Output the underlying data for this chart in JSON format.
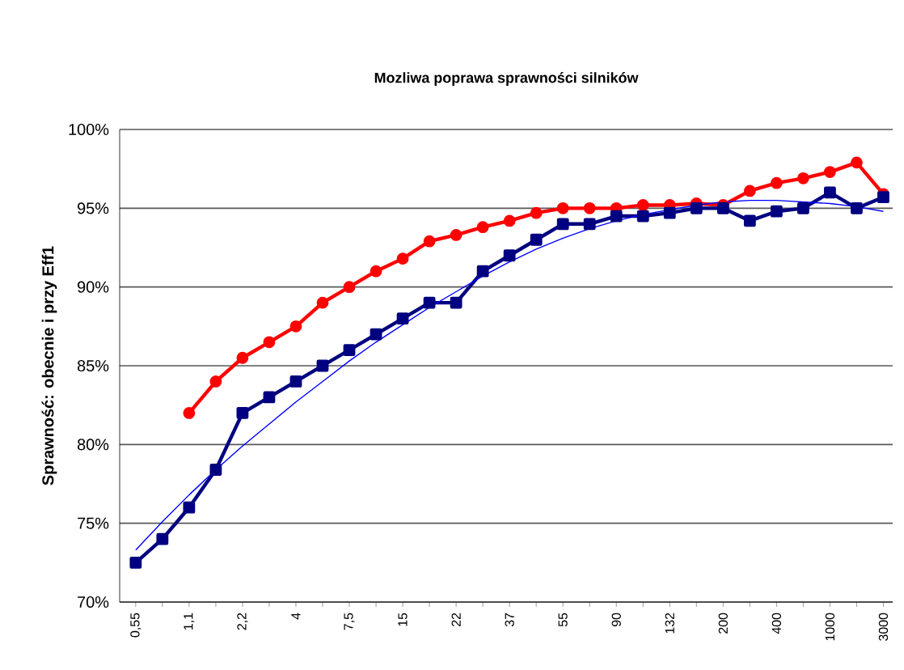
{
  "chart_data": {
    "type": "line",
    "title": "Mozliwa poprawa sprawności silników",
    "ylabel": "Sprawność: obecnie i przy Eff1",
    "categories": [
      "0,55",
      null,
      "1,1",
      null,
      "2,2",
      null,
      "4",
      null,
      "7,5",
      null,
      "15",
      null,
      "22",
      null,
      "37",
      null,
      "55",
      null,
      "90",
      null,
      "132",
      null,
      "200",
      null,
      "400",
      null,
      "1000",
      null,
      "3000"
    ],
    "series": [
      {
        "color": "#ff0000",
        "marker": "circle",
        "values": [
          null,
          null,
          82,
          84,
          85.5,
          86.5,
          87.5,
          89,
          90,
          91,
          91.8,
          92.9,
          93.3,
          93.8,
          94.2,
          94.7,
          95,
          95,
          95,
          95.2,
          95.2,
          95.3,
          95.2,
          96.1,
          96.6,
          96.9,
          97.3,
          97.9,
          95.9
        ]
      },
      {
        "color": "#000080",
        "marker": "square",
        "values": [
          72.5,
          74,
          76,
          78.4,
          82,
          83,
          84,
          85,
          86,
          87,
          88,
          89,
          89,
          91,
          92,
          93,
          94,
          94,
          94.5,
          94.5,
          94.7,
          95,
          95,
          94.2,
          94.8,
          95,
          96,
          95,
          95.7
        ]
      },
      {
        "color": "#0000ff",
        "marker": "none",
        "values": [
          73.3,
          75.1,
          76.8,
          78.4,
          79.9,
          81.3,
          82.7,
          84,
          85.3,
          86.5,
          87.6,
          88.7,
          89.7,
          90.7,
          91.6,
          92.4,
          93.1,
          93.7,
          94.2,
          94.6,
          94.9,
          95.2,
          95.4,
          95.5,
          95.5,
          95.4,
          95.3,
          95.1,
          94.8
        ]
      }
    ],
    "ylim": [
      70,
      100
    ],
    "yticks": [
      {
        "value": 70,
        "label": "70%"
      },
      {
        "value": 75,
        "label": "75%"
      },
      {
        "value": 80,
        "label": "80%"
      },
      {
        "value": 85,
        "label": "85%"
      },
      {
        "value": 90,
        "label": "90%"
      },
      {
        "value": 95,
        "label": "95%"
      },
      {
        "value": 100,
        "label": "100%"
      }
    ],
    "grid": "y",
    "line_style": "solid"
  }
}
